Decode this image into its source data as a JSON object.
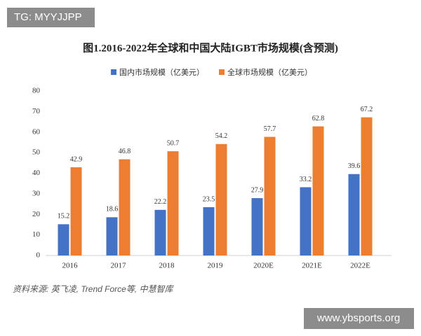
{
  "watermarks": [
    "TG: MYYJJPP",
    "www.ybsports.org"
  ],
  "chart_data": {
    "type": "bar",
    "title": "图1.2016-2022年全球和中国大陆IGBT市场规模(含预测)",
    "categories": [
      "2016",
      "2017",
      "2018",
      "2019",
      "2020E",
      "2021E",
      "2022E"
    ],
    "series": [
      {
        "name": "国内市场规模（亿美元）",
        "color": "#4472c4",
        "values": [
          15.2,
          18.6,
          22.2,
          23.5,
          27.9,
          33.2,
          39.6
        ]
      },
      {
        "name": "全球市场规模（亿美元）",
        "color": "#ed7d31",
        "values": [
          42.9,
          46.8,
          50.7,
          54.2,
          57.7,
          62.8,
          67.2
        ]
      }
    ],
    "ylim": [
      0,
      80
    ],
    "yticks": [
      0,
      10,
      20,
      30,
      40,
      50,
      60,
      70,
      80
    ],
    "source": "资料来源: 英飞凌, Trend Force等, 中慧智库"
  }
}
